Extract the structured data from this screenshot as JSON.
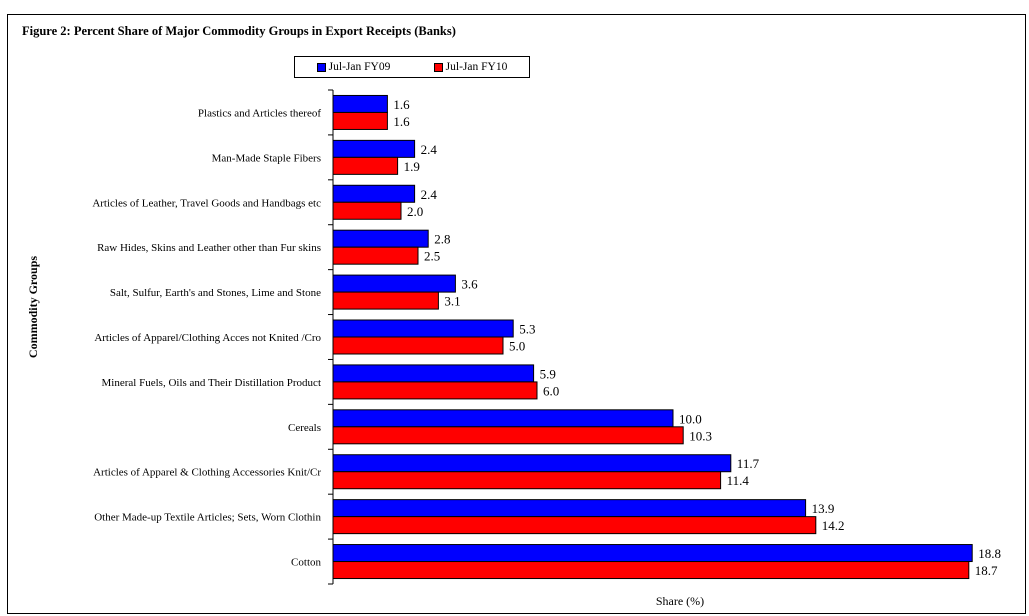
{
  "chart_data": {
    "type": "bar",
    "orientation": "horizontal",
    "title": "Figure 2: Percent Share of Major Commodity Groups in Export Receipts (Banks)",
    "xlabel": "Share (%)",
    "ylabel": "Commodity Groups",
    "xlim": [
      0,
      20
    ],
    "grid": false,
    "legend_position": "top",
    "categories": [
      "Plastics and Articles thereof",
      "Man-Made Staple Fibers",
      "Articles of Leather, Travel Goods and Handbags etc",
      "Raw Hides, Skins and Leather other than Fur skins",
      "Salt, Sulfur, Earth's and Stones, Lime and Stone",
      "Articles of Apparel/Clothing Acces not Knited /Cro",
      "Mineral Fuels, Oils and Their Distillation Product",
      "Cereals",
      "Articles of Apparel & Clothing Accessories Knit/Cr",
      "Other Made-up Textile Articles; Sets, Worn Clothin",
      "Cotton"
    ],
    "series": [
      {
        "name": "Jul-Jan FY09",
        "color": "#0000ff",
        "values": [
          1.6,
          2.4,
          2.4,
          2.8,
          3.6,
          5.3,
          5.9,
          10.0,
          11.7,
          13.9,
          18.8
        ],
        "labels": [
          "1.6",
          "2.4",
          "2.4",
          "2.8",
          "3.6",
          "5.3",
          "5.9",
          "10.0",
          "11.7",
          "13.9",
          "18.8"
        ]
      },
      {
        "name": "Jul-Jan FY10",
        "color": "#ff0000",
        "values": [
          1.6,
          1.9,
          2.0,
          2.5,
          3.1,
          5.0,
          6.0,
          10.3,
          11.4,
          14.2,
          18.7
        ],
        "labels": [
          "1.6",
          "1.9",
          "2.0",
          "2.5",
          "3.1",
          "5.0",
          "6.0",
          "10.3",
          "11.4",
          "14.2",
          "18.7"
        ]
      }
    ]
  }
}
